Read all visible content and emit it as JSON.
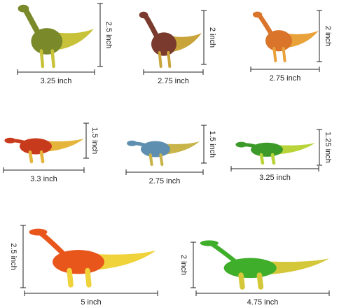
{
  "figures": [
    {
      "width": "3.25 inch",
      "height": "2.5 inch"
    },
    {
      "width": "2.75 inch",
      "height": "2 inch"
    },
    {
      "width": "2.75 inch",
      "height": "2 inch"
    },
    {
      "width": "3.3 inch",
      "height": "1.5 inch"
    },
    {
      "width": "2.75 inch",
      "height": "1.5 inch"
    },
    {
      "width": "3.25 inch",
      "height": "1.25 inch"
    },
    {
      "width": "5 inch",
      "height": "2.5 inch"
    },
    {
      "width": "4.75 inch",
      "height": "2 inch"
    }
  ]
}
